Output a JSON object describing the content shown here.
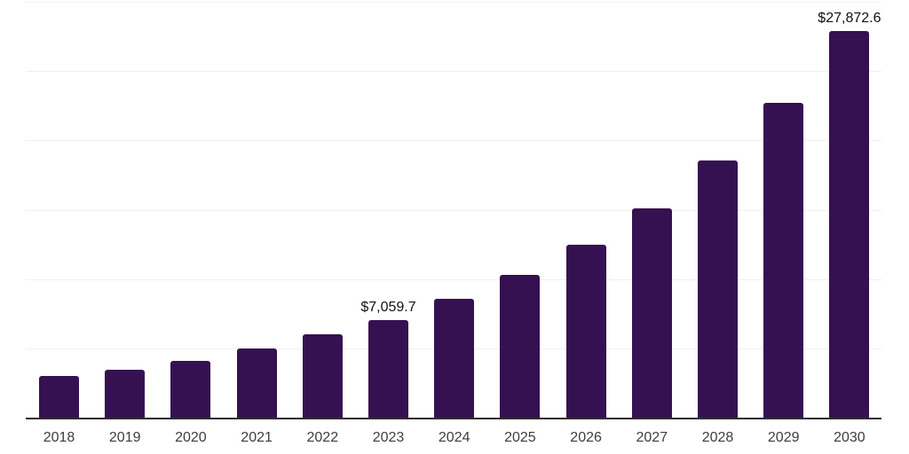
{
  "chart_data": {
    "type": "bar",
    "title": "",
    "xlabel": "",
    "ylabel": "",
    "categories": [
      "2018",
      "2019",
      "2020",
      "2021",
      "2022",
      "2023",
      "2024",
      "2025",
      "2026",
      "2027",
      "2028",
      "2029",
      "2030"
    ],
    "values": [
      3030,
      3480,
      4100,
      4970,
      6000,
      7059.7,
      8560,
      10300,
      12500,
      15120,
      18560,
      22720,
      27872.6
    ],
    "annotations": [
      {
        "category": "2023",
        "text": "$7,059.7"
      },
      {
        "category": "2030",
        "text": "$27,872.6"
      }
    ],
    "ylim": [
      0,
      30000
    ],
    "gridline_interval": 5000,
    "grid": true,
    "y_axis_labels_visible": false,
    "legend_position": "none",
    "colors": {
      "bar": "#351151",
      "axis_line": "#2e2e2e",
      "gridline": "#f0f0f0",
      "tick_label": "#3d3d3d",
      "data_label": "#111111",
      "background": "#ffffff"
    }
  }
}
